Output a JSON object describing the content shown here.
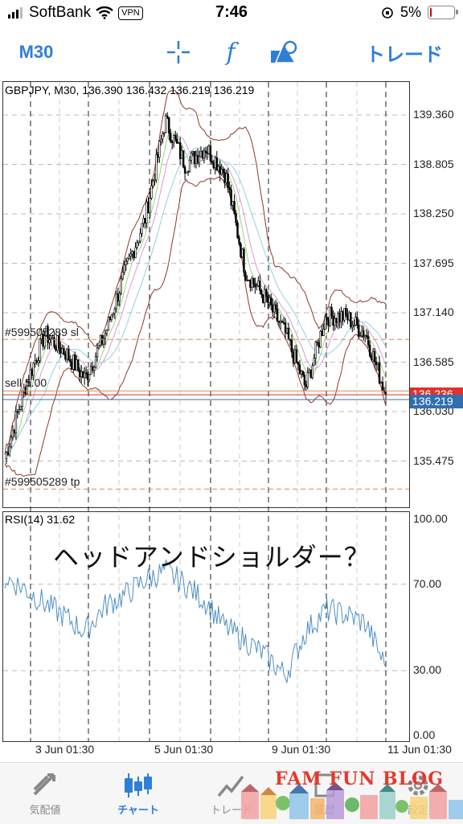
{
  "status_bar": {
    "carrier": "SoftBank",
    "vpn": "VPN",
    "time": "7:46",
    "battery": "5%",
    "battery_level": 0.05
  },
  "toolbar": {
    "timeframe": "M30",
    "indicator_glyph": "f",
    "trade": "トレード",
    "icons": [
      "crosshair-icon",
      "function-icon",
      "objects-icon"
    ]
  },
  "chart": {
    "symbol_line": "GBPJPY, M30, 136.390 136.432 136.219 136.219",
    "price_ticks": [
      "139.360",
      "138.805",
      "138.250",
      "137.695",
      "137.140",
      "136.585",
      "136.030",
      "135.475"
    ],
    "current_price_tag": "136.219",
    "ask_tag": "136.236",
    "order_sl_label": "#599505289 sl",
    "order_sell_label": "sell 5.00",
    "order_tp_label": "#599505289 tp",
    "rsi_title": "RSI(14) 31.62",
    "rsi_ticks": [
      "100.00",
      "70.00",
      "30.00",
      "0.00"
    ],
    "date_ticks": [
      "3 Jun 01:30",
      "5 Jun 01:30",
      "9 Jun 01:30",
      "11 Jun 01:30"
    ],
    "annotation": "ヘッドアンドショルダー？",
    "colors": {
      "bid_line": "#2f6fb0",
      "ask_line": "#e0322d",
      "order_line": "#d98c4a",
      "rsi_line": "#4f8fc6",
      "bands": "#8b3a2a"
    }
  },
  "chart_data": {
    "type": "candlestick",
    "symbol": "GBPJPY",
    "timeframe": "M30",
    "ohlc_last": {
      "open": 136.39,
      "high": 136.432,
      "low": 136.219,
      "close": 136.219
    },
    "y_range": [
      135.1,
      139.6
    ],
    "x": [
      "3 Jun 01:30",
      "5 Jun 01:30",
      "9 Jun 01:30",
      "11 Jun 01:30"
    ],
    "close_path": [
      135.5,
      136.3,
      136.9,
      136.7,
      136.4,
      136.9,
      137.6,
      138.2,
      139.3,
      138.8,
      139.0,
      138.7,
      137.6,
      137.3,
      136.9,
      136.3,
      137.1,
      137.1,
      136.9,
      136.22
    ],
    "rsi_path": [
      73,
      68,
      61,
      55,
      48,
      60,
      65,
      72,
      76,
      70,
      62,
      50,
      44,
      37,
      28,
      48,
      58,
      56,
      52,
      31.62
    ],
    "rsi_range": [
      0,
      100
    ]
  },
  "tabbar": {
    "tabs": [
      "気配値",
      "チャート",
      "トレード",
      "履歴",
      "設定"
    ],
    "active": "チャート"
  },
  "watermark": "FAM FUN BLOG"
}
